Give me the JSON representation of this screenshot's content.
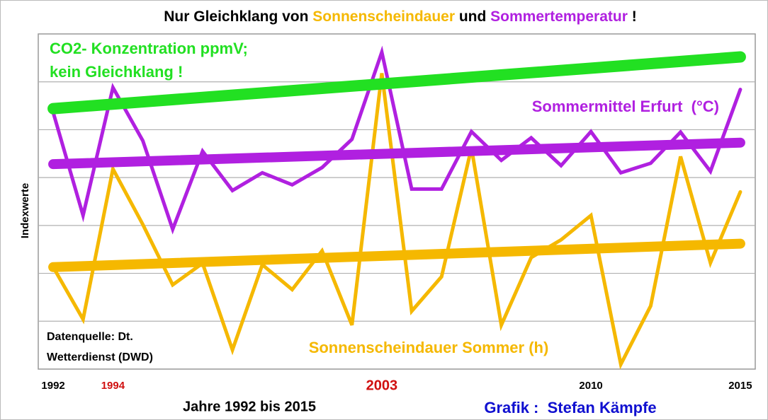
{
  "chart_data": {
    "type": "line",
    "title_parts": [
      {
        "text": "Nur Gleichklang von ",
        "color": "#000000"
      },
      {
        "text": "Sonnenscheindauer",
        "color": "#f5b800"
      },
      {
        "text": " und ",
        "color": "#000000"
      },
      {
        "text": "Sommertemperatur",
        "color": "#b020e0"
      },
      {
        "text": " !",
        "color": "#000000"
      }
    ],
    "x_label": "Jahre 1992 bis 2015",
    "y_label": "Indexwerte",
    "credit": "Grafik :  Stefan Kämpfe",
    "source": [
      "Datenquelle: Dt.",
      "Wetterdienst (DWD)"
    ],
    "x": [
      1992,
      1993,
      1994,
      1995,
      1996,
      1997,
      1998,
      1999,
      2000,
      2001,
      2002,
      2003,
      2004,
      2005,
      2006,
      2007,
      2008,
      2009,
      2010,
      2011,
      2012,
      2013,
      2014,
      2015
    ],
    "xlim": [
      1991.5,
      2015.5
    ],
    "xticks": [
      1992,
      1994,
      2003,
      2010,
      2015
    ],
    "xtick_colors": [
      "#000000",
      "#d01010",
      "#d01010",
      "#000000",
      "#000000"
    ],
    "ylim": [
      0,
      7
    ],
    "yticks": [
      1,
      2,
      3,
      4,
      5,
      6
    ],
    "grid": true,
    "series": [
      {
        "color": "#b020e0",
        "values": [
          5.36,
          3.21,
          5.88,
          4.77,
          2.92,
          4.55,
          3.73,
          4.1,
          3.85,
          4.21,
          4.8,
          6.62,
          3.76,
          3.76,
          4.96,
          4.36,
          4.83,
          4.25,
          4.96,
          4.1,
          4.3,
          4.95,
          4.13,
          5.84
        ]
      },
      {
        "color": "#f5b800",
        "values": [
          2.13,
          1.04,
          4.18,
          3.02,
          1.76,
          2.21,
          0.4,
          2.18,
          1.66,
          2.47,
          0.92,
          6.18,
          1.21,
          1.93,
          4.62,
          0.92,
          2.33,
          2.7,
          3.21,
          0.1,
          1.32,
          4.44,
          2.22,
          3.7
        ]
      }
    ],
    "trends": [
      {
        "color": "#22e022",
        "x": [
          1992,
          2015
        ],
        "values": [
          5.44,
          6.52
        ]
      },
      {
        "color": "#b020e0",
        "x": [
          1992,
          2015
        ],
        "values": [
          4.28,
          4.73
        ]
      },
      {
        "color": "#f5b800",
        "x": [
          1992,
          2015
        ],
        "values": [
          2.13,
          2.62
        ]
      }
    ],
    "annotations": [
      {
        "text": "CO2- Konzentration ppmV;",
        "color": "#22e022"
      },
      {
        "text": "kein Gleichklang !",
        "color": "#22e022"
      },
      {
        "text": "Sommermittel Erfurt  (°C)",
        "color": "#b020e0"
      },
      {
        "text": "Sonnenscheindauer Sommer (h)",
        "color": "#f5b800"
      }
    ]
  }
}
